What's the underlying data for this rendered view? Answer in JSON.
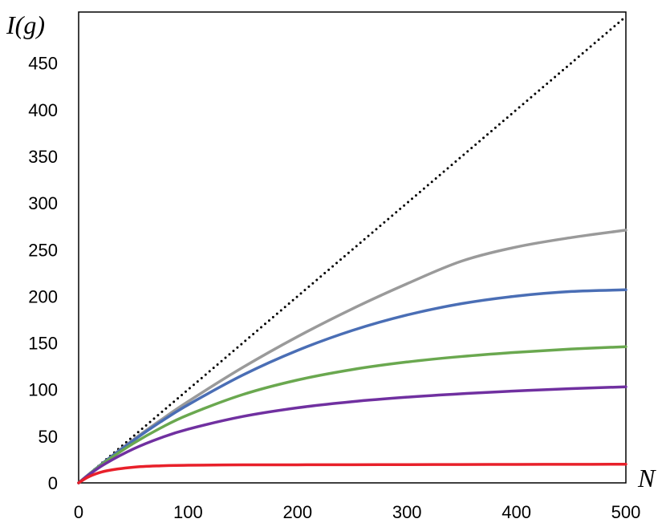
{
  "chart_data": {
    "type": "line",
    "title": "",
    "xlabel": "N",
    "ylabel": "I(g)",
    "xlim": [
      0,
      500
    ],
    "ylim": [
      0,
      500
    ],
    "x_ticks": [
      0,
      100,
      200,
      300,
      400,
      500
    ],
    "y_ticks": [
      0,
      50,
      100,
      150,
      200,
      250,
      300,
      350,
      400,
      450
    ],
    "grid": false,
    "legend": "none",
    "x": [
      0,
      10,
      25,
      50,
      75,
      100,
      150,
      200,
      250,
      300,
      350,
      400,
      450,
      500
    ],
    "series": [
      {
        "color": "#000000",
        "style": "dotted",
        "values": [
          0,
          10,
          25,
          50,
          75,
          100,
          150,
          200,
          250,
          300,
          350,
          400,
          450,
          500
        ]
      },
      {
        "color": "#9a9a9a",
        "style": "solid",
        "values": [
          0,
          9.8,
          23.9,
          46.3,
          67.3,
          87.2,
          123.8,
          156.8,
          186.6,
          213.5,
          237.8,
          252.9,
          263.0,
          271
        ]
      },
      {
        "color": "#4a6eb5",
        "style": "solid",
        "values": [
          0,
          9.8,
          23.7,
          45.4,
          65.5,
          83.7,
          115.6,
          142.0,
          163.4,
          180.0,
          192.2,
          200.3,
          205.2,
          207
        ]
      },
      {
        "color": "#6aa84f",
        "style": "solid",
        "values": [
          0,
          9.6,
          22.9,
          42.3,
          58.9,
          72.9,
          94.7,
          110.3,
          121.5,
          129.6,
          135.5,
          140.0,
          143.5,
          146
        ]
      },
      {
        "color": "#7030a0",
        "style": "solid",
        "values": [
          0,
          9.2,
          21.0,
          36.4,
          48.3,
          57.6,
          71.2,
          80.5,
          87.1,
          91.9,
          95.6,
          98.6,
          101.0,
          103
        ]
      },
      {
        "color": "#e8202a",
        "style": "solid",
        "values": [
          0,
          7.0,
          12.8,
          16.8,
          18.3,
          18.9,
          19.3,
          19.4,
          19.5,
          19.6,
          19.7,
          19.8,
          19.9,
          20
        ]
      }
    ]
  }
}
